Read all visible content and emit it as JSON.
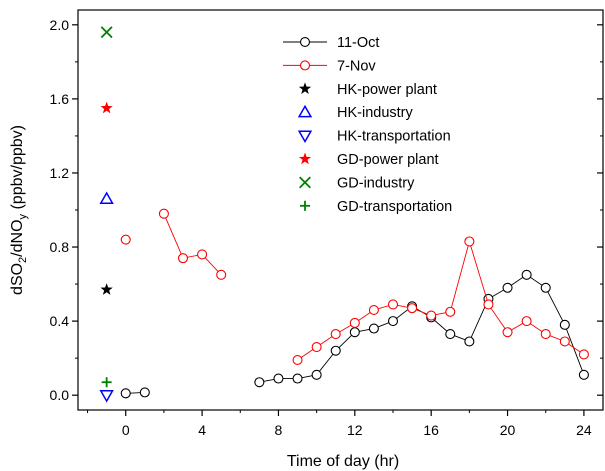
{
  "chart_data": {
    "type": "scatter",
    "xlabel": "Time of day (hr)",
    "ylabel": {
      "main": "dSO",
      "sub1": "2",
      "mid": "/dNO",
      "sub2": "y",
      "unit": " (ppbv/ppbv)"
    },
    "xlim": [
      -2.5,
      25
    ],
    "ylim": [
      -0.08,
      2.08
    ],
    "xticks": [
      0,
      4,
      8,
      12,
      16,
      20,
      24
    ],
    "yticks": [
      0.0,
      0.4,
      0.8,
      1.2,
      1.6,
      2.0
    ],
    "ytick_labels": [
      "0.0",
      "0.4",
      "0.8",
      "1.2",
      "1.6",
      "2.0"
    ],
    "grid": false,
    "legend_position": "top-center",
    "series": [
      {
        "name": "11-Oct",
        "marker": "open-circle",
        "color": "#000000",
        "line": true,
        "segments": [
          [
            [
              0,
              0.01
            ],
            [
              1,
              0.015
            ]
          ],
          [
            [
              7,
              0.07
            ],
            [
              8,
              0.09
            ],
            [
              9,
              0.09
            ],
            [
              10,
              0.11
            ],
            [
              11,
              0.24
            ],
            [
              12,
              0.34
            ],
            [
              13,
              0.36
            ],
            [
              14,
              0.4
            ],
            [
              15,
              0.48
            ],
            [
              16,
              0.42
            ],
            [
              17,
              0.33
            ],
            [
              18,
              0.29
            ],
            [
              19,
              0.52
            ],
            [
              20,
              0.58
            ],
            [
              21,
              0.65
            ],
            [
              22,
              0.58
            ],
            [
              23,
              0.38
            ],
            [
              24,
              0.11
            ]
          ]
        ]
      },
      {
        "name": "7-Nov",
        "marker": "open-circle",
        "color": "#ff0000",
        "line": true,
        "segments": [
          [
            [
              0,
              0.84
            ]
          ],
          [
            [
              2,
              0.98
            ],
            [
              3,
              0.74
            ],
            [
              4,
              0.76
            ],
            [
              5,
              0.65
            ]
          ],
          [
            [
              9,
              0.19
            ],
            [
              10,
              0.26
            ],
            [
              11,
              0.33
            ],
            [
              12,
              0.39
            ],
            [
              13,
              0.46
            ],
            [
              14,
              0.49
            ],
            [
              15,
              0.47
            ],
            [
              16,
              0.43
            ],
            [
              17,
              0.45
            ],
            [
              18,
              0.83
            ],
            [
              19,
              0.49
            ],
            [
              20,
              0.34
            ],
            [
              21,
              0.4
            ],
            [
              22,
              0.33
            ],
            [
              23,
              0.29
            ],
            [
              24,
              0.22
            ]
          ]
        ]
      },
      {
        "name": "HK-power plant",
        "marker": "star",
        "color": "#000000",
        "line": false,
        "segments": [
          [
            [
              -1,
              0.57
            ]
          ]
        ]
      },
      {
        "name": "HK-industry",
        "marker": "triangle-up",
        "color": "#0000ff",
        "line": false,
        "segments": [
          [
            [
              -1,
              1.06
            ]
          ]
        ]
      },
      {
        "name": "HK-transportation",
        "marker": "triangle-down",
        "color": "#0000ff",
        "line": false,
        "segments": [
          [
            [
              -1,
              0.0
            ]
          ]
        ]
      },
      {
        "name": "GD-power plant",
        "marker": "star",
        "color": "#ff0000",
        "line": false,
        "segments": [
          [
            [
              -1,
              1.55
            ]
          ]
        ]
      },
      {
        "name": "GD-industry",
        "marker": "x",
        "color": "#008000",
        "line": false,
        "segments": [
          [
            [
              -1,
              1.96
            ]
          ]
        ]
      },
      {
        "name": "GD-transportation",
        "marker": "plus",
        "color": "#008000",
        "line": false,
        "segments": [
          [
            [
              -1,
              0.07
            ]
          ]
        ]
      }
    ]
  }
}
